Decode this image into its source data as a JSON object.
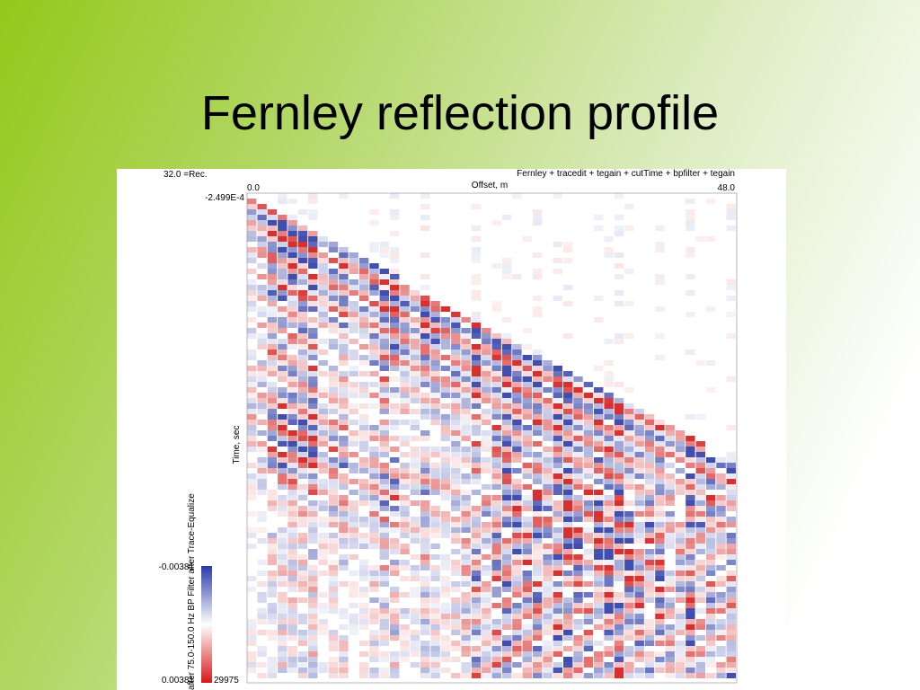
{
  "header": {
    "title": "Fernley reflection profile"
  },
  "figure": {
    "record": "32.0 =Rec.",
    "processing": "Fernley + tracedit + tegain + cutTime + bpfilter + tegain",
    "x_axis_label": "Offset, m",
    "x_start": "0.0",
    "x_end": "48.0",
    "y_start": "-2.499E-4",
    "y_axis_label": "Time, sec",
    "colorbar_label": "after 75.0-150.0 Hz BP Filter after Trace-Equalize",
    "colorbar_top": "-0.00381",
    "colorbar_bottom": "0.00381",
    "colorbar_extra": "29975"
  }
}
